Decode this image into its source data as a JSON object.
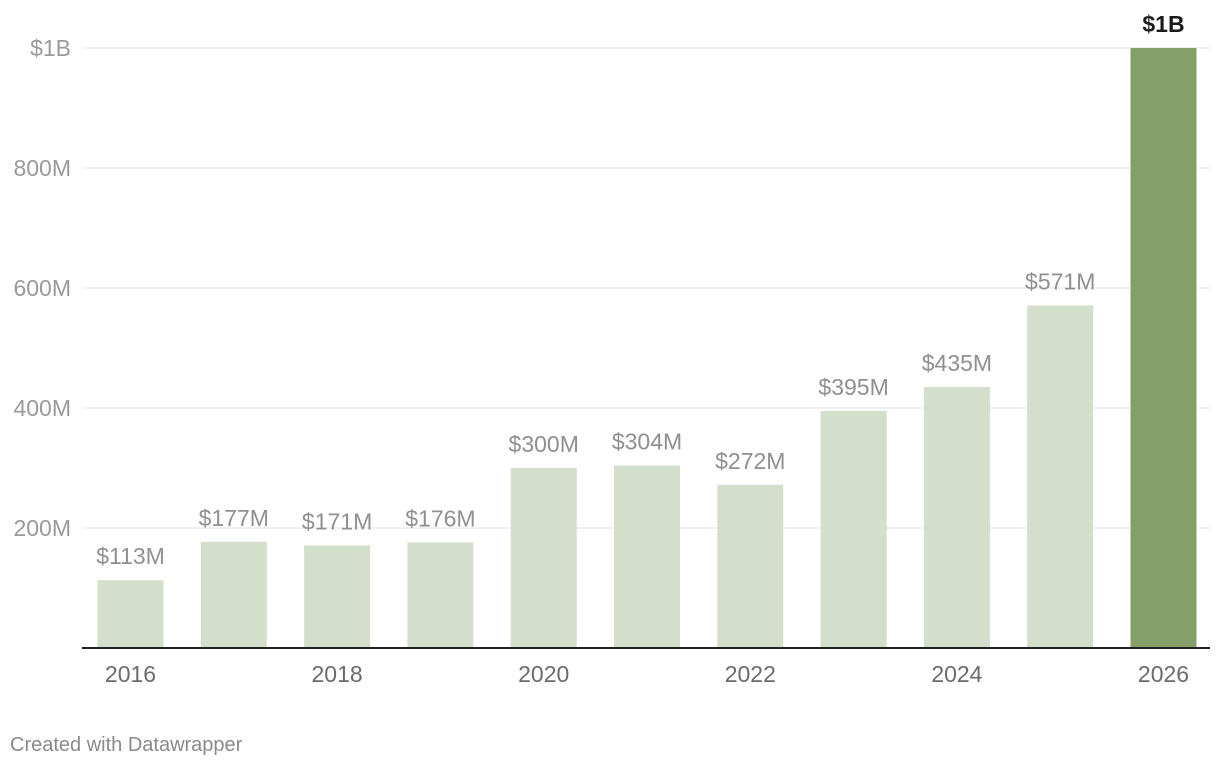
{
  "chart_data": {
    "type": "bar",
    "categories": [
      "2016",
      "2017",
      "2018",
      "2019",
      "2020",
      "2021",
      "2022",
      "2023",
      "2024",
      "2025",
      "2026"
    ],
    "values": [
      113,
      177,
      171,
      176,
      300,
      304,
      272,
      395,
      435,
      571,
      1000
    ],
    "value_labels": [
      "$113M",
      "$177M",
      "$171M",
      "$176M",
      "$300M",
      "$304M",
      "$272M",
      "$395M",
      "$435M",
      "$571M",
      "$1B"
    ],
    "x_tick_labels": [
      "2016",
      "",
      "2018",
      "",
      "2020",
      "",
      "2022",
      "",
      "2024",
      "",
      "2026"
    ],
    "y_ticks": [
      200,
      400,
      600,
      800,
      1000
    ],
    "y_tick_labels": [
      "200M",
      "400M",
      "600M",
      "800M",
      "$1B"
    ],
    "ylim": [
      0,
      1000
    ],
    "unit": "millions of dollars",
    "highlight_index": 10,
    "colors": {
      "bar": "#d3dfcb",
      "bar_highlight": "#84a068"
    },
    "title": "",
    "xlabel": "",
    "ylabel": "",
    "grid": true,
    "legend": "none"
  },
  "footer": {
    "credit": "Created with Datawrapper"
  }
}
